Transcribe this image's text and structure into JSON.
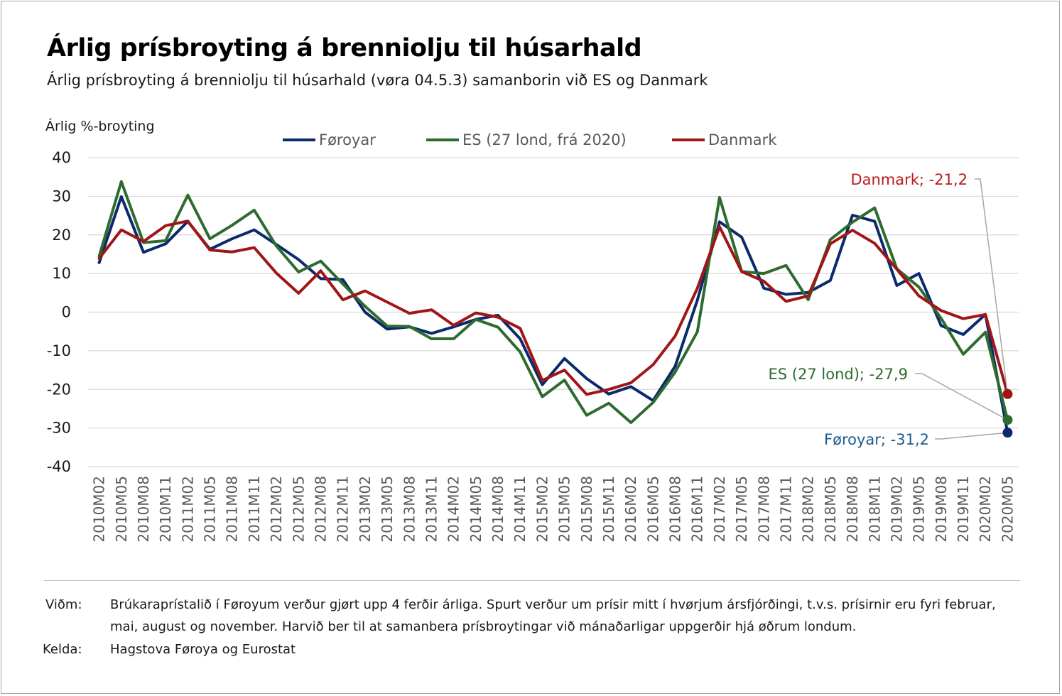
{
  "header": {
    "title": "Árlig prísbroyting á brenniolju til húsarhald",
    "subtitle": "Árlig prísbroyting á brenniolju til húsarhald (vøra 04.5.3) samanborin við ES og Danmark"
  },
  "footer": {
    "note_label": "Viðm:",
    "note_text": "Brúkaraprístalið í Føroyum verður gjørt upp 4 ferðir árliga. Spurt verður um prísir mitt í hvørjum ársfjórðingi, t.v.s. prísirnir eru fyri februar, mai, august og november. Harvið ber til at samanbera prísbroytingar við mánaðarligar uppgerðir hjá øðrum londum.",
    "source_label": "Kelda:",
    "source_text": "Hagstova Føroya og Eurostat"
  },
  "chart_data": {
    "type": "line",
    "ylabel": "Árlig %-broyting",
    "ylim": [
      -40,
      40
    ],
    "yticks": [
      -40,
      -30,
      -20,
      -10,
      0,
      10,
      20,
      30,
      40
    ],
    "grid": "horizontal",
    "legend_position": "top",
    "categories": [
      "2010M02",
      "2010M05",
      "2010M08",
      "2010M11",
      "2011M02",
      "2011M05",
      "2011M08",
      "2011M11",
      "2012M02",
      "2012M05",
      "2012M08",
      "2012M11",
      "2013M02",
      "2013M05",
      "2013M08",
      "2013M11",
      "2014M02",
      "2014M05",
      "2014M08",
      "2014M11",
      "2015M02",
      "2015M05",
      "2015M08",
      "2015M11",
      "2016M02",
      "2016M05",
      "2016M08",
      "2016M11",
      "2017M02",
      "2017M05",
      "2017M08",
      "2017M11",
      "2018M02",
      "2018M05",
      "2018M08",
      "2018M11",
      "2019M02",
      "2019M05",
      "2019M08",
      "2019M11",
      "2020M02",
      "2020M05"
    ],
    "series": [
      {
        "name": "Føroyar",
        "color": "#0b2a6b",
        "values": [
          12.8,
          29.9,
          15.5,
          17.7,
          23.5,
          16.3,
          19.0,
          21.3,
          17.5,
          13.6,
          8.7,
          8.4,
          0.0,
          -4.4,
          -3.8,
          -5.5,
          -3.8,
          -1.9,
          -0.8,
          -6.9,
          -18.8,
          -12.0,
          -17.2,
          -21.2,
          -19.3,
          -22.9,
          -14.0,
          3.1,
          23.4,
          19.4,
          6.2,
          4.6,
          5.1,
          8.2,
          25.1,
          23.5,
          6.9,
          10.0,
          -3.5,
          -5.8,
          -0.6,
          -31.2
        ]
      },
      {
        "name": "ES (27 lond, frá 2020)",
        "color": "#2e6b2e",
        "values": [
          14.5,
          33.8,
          18.0,
          18.5,
          30.3,
          19.0,
          22.5,
          26.4,
          17.1,
          10.4,
          13.2,
          7.3,
          1.5,
          -3.6,
          -3.7,
          -6.9,
          -6.9,
          -1.9,
          -3.9,
          -10.3,
          -21.9,
          -17.6,
          -26.7,
          -23.6,
          -28.6,
          -23.4,
          -15.5,
          -5.1,
          29.7,
          10.5,
          10.0,
          12.1,
          3.2,
          18.8,
          23.3,
          27.0,
          11.2,
          6.5,
          -1.6,
          -10.9,
          -5.2,
          -27.9
        ]
      },
      {
        "name": "Danmark",
        "color": "#a01616",
        "values": [
          13.9,
          21.3,
          18.3,
          22.4,
          23.6,
          16.1,
          15.6,
          16.7,
          10.1,
          4.9,
          10.7,
          3.2,
          5.5,
          2.6,
          -0.3,
          0.6,
          -3.4,
          -0.2,
          -1.3,
          -4.2,
          -17.7,
          -15.0,
          -21.3,
          -20.0,
          -18.3,
          -13.6,
          -6.2,
          6.2,
          22.1,
          10.5,
          8.0,
          2.8,
          4.2,
          17.7,
          21.2,
          17.8,
          11.1,
          4.2,
          0.4,
          -1.7,
          -0.6,
          -21.2
        ]
      }
    ],
    "annotations": [
      {
        "series": "Danmark",
        "text": "Danmark; -21,2",
        "color": "#b81c1c"
      },
      {
        "series": "ES (27 lond, frá 2020)",
        "text": "ES (27 lond); -27,9",
        "color": "#2e6b2e"
      },
      {
        "series": "Føroyar",
        "text": "Føroyar; -31,2",
        "color": "#1f5a8a"
      }
    ]
  }
}
